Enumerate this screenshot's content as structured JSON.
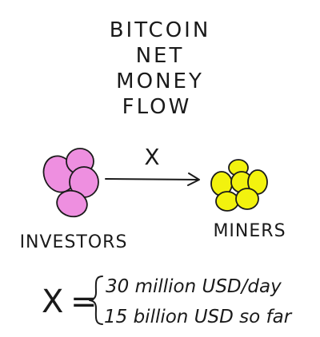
{
  "title": {
    "lines": [
      "BITCOIN",
      "NET",
      "MONEY",
      "FLOW"
    ]
  },
  "diagram": {
    "source_label": "INVESTORS",
    "target_label": "MINERS",
    "flow_label": "X",
    "source_color": "#ee8fe0",
    "target_color": "#f2f20e"
  },
  "formula": {
    "variable": "X",
    "equals": "=",
    "lines": [
      "30 million USD/day",
      "15 billion USD so far"
    ]
  }
}
